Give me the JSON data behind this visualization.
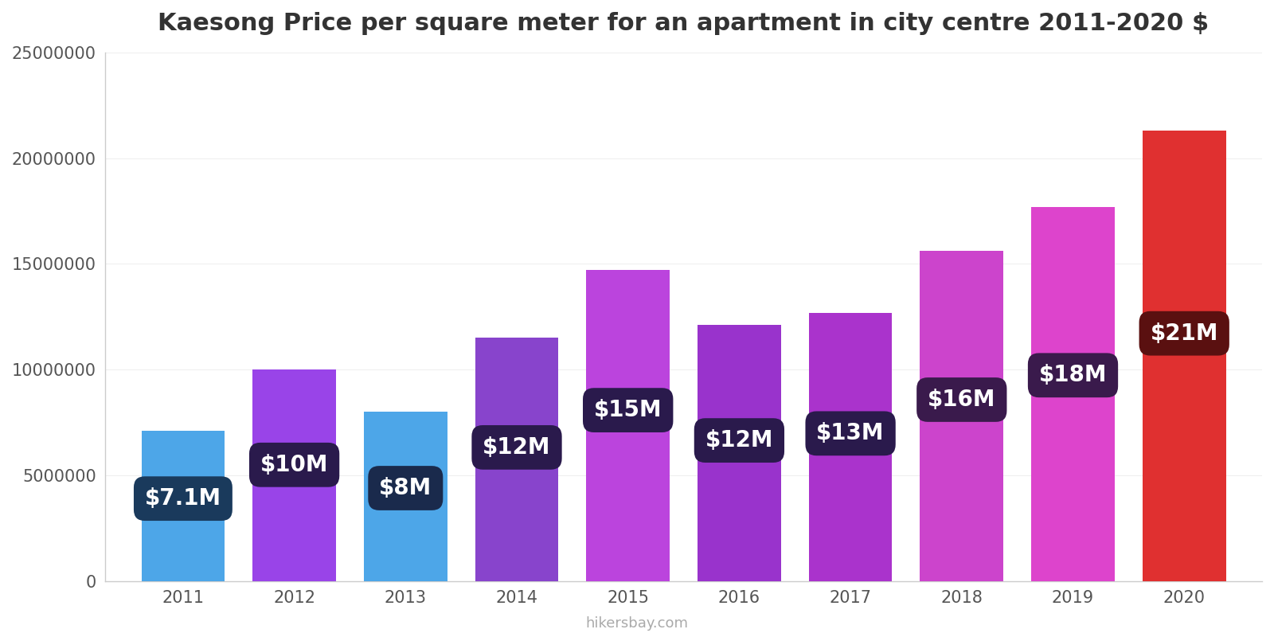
{
  "title": "Kaesong Price per square meter for an apartment in city centre 2011-2020 $",
  "years": [
    2011,
    2012,
    2013,
    2014,
    2015,
    2016,
    2017,
    2018,
    2019,
    2020
  ],
  "values": [
    7100000,
    10000000,
    8000000,
    11500000,
    14700000,
    12100000,
    12700000,
    15600000,
    17700000,
    21300000
  ],
  "bar_colors": [
    "#4da6e8",
    "#9944e8",
    "#4da6e8",
    "#8844cc",
    "#bb44dd",
    "#9933cc",
    "#aa33cc",
    "#cc44cc",
    "#dd44cc",
    "#e03030"
  ],
  "labels": [
    "$7.1M",
    "$10M",
    "$8M",
    "$12M",
    "$15M",
    "$12M",
    "$13M",
    "$16M",
    "$18M",
    "$21M"
  ],
  "label_bg_colors": [
    "#1a3a5c",
    "#2a1a4c",
    "#1a2a4c",
    "#2a1a4c",
    "#2a1a4c",
    "#2a1a4c",
    "#2a1a4c",
    "#3a1a4c",
    "#3a1a4c",
    "#5a1010"
  ],
  "ylim": [
    0,
    25000000
  ],
  "yticks": [
    0,
    5000000,
    10000000,
    15000000,
    20000000,
    25000000
  ],
  "ytick_labels": [
    "0",
    "5000000",
    "10000000",
    "15000000",
    "20000000",
    "25000000"
  ],
  "background_color": "#ffffff",
  "watermark": "hikersbay.com",
  "title_fontsize": 22,
  "tick_fontsize": 15,
  "label_fontsize": 20
}
